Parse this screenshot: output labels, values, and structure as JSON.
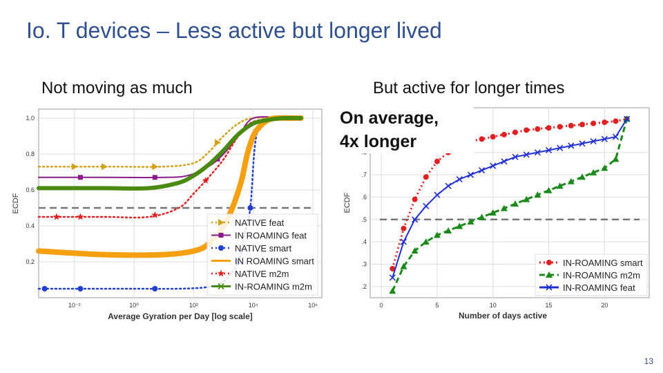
{
  "slide": {
    "title": "Io. T devices – Less active but longer lived",
    "subtitle_left": "Not moving as much",
    "subtitle_right": "But active for longer times",
    "callout_line1": "On average,",
    "callout_line2": "4x longer",
    "page_number": "13"
  },
  "chart_data": [
    {
      "type": "line",
      "xlabel": "Average Gyration per Day [log scale]",
      "ylabel": "ECDF",
      "xscale": "log",
      "xlim_exp": [
        -3.2,
        6.3
      ],
      "ylim": [
        0,
        1.05
      ],
      "x_ticks": [
        {
          "exp": -2,
          "label": "10⁻²"
        },
        {
          "exp": 0,
          "label": "10⁰"
        },
        {
          "exp": 2,
          "label": "10²"
        },
        {
          "exp": 4,
          "label": "10⁴"
        },
        {
          "exp": 6,
          "label": "10⁶"
        }
      ],
      "y_ticks": [
        0.2,
        0.4,
        0.6,
        0.8,
        1.0
      ],
      "y_tick_labels": [
        "0.2",
        "0.4",
        "0.6",
        "0.8",
        "1.0"
      ],
      "hline": 0.5,
      "grid": true,
      "legend_position": "bottom-right",
      "series": [
        {
          "name": "NATIVE feat",
          "color": "#d4a017",
          "dash": "2,4",
          "width": 2.5,
          "marker": "triangle-right",
          "x": [
            -3.2,
            -1,
            1,
            2,
            2.5,
            3,
            3.5,
            4,
            5
          ],
          "y": [
            0.73,
            0.73,
            0.73,
            0.75,
            0.81,
            0.9,
            0.97,
            1.0,
            1.0
          ],
          "markers_x": [
            -2,
            -1,
            0.7,
            2.8
          ]
        },
        {
          "name": "IN ROAMING feat",
          "color": "#8b1a8b",
          "dash": "",
          "width": 2,
          "marker": "square",
          "x": [
            -3.2,
            -1,
            1,
            1.8,
            2.5,
            3,
            3.5,
            4,
            5
          ],
          "y": [
            0.67,
            0.67,
            0.67,
            0.68,
            0.73,
            0.8,
            0.9,
            1.0,
            1.0
          ],
          "markers_x": [
            -1.8,
            0.7,
            2.8
          ]
        },
        {
          "name": "NATIVE smart",
          "color": "#1f3fcf",
          "dash": "2,4",
          "width": 2.5,
          "marker": "circle",
          "x": [
            -3.2,
            0,
            1.5,
            2.5,
            3,
            3.5,
            3.7,
            3.9,
            4.1,
            4.5,
            5
          ],
          "y": [
            0.05,
            0.05,
            0.05,
            0.06,
            0.09,
            0.2,
            0.35,
            0.5,
            0.9,
            1.0,
            1.0
          ],
          "markers_x": [
            -3,
            -1.8,
            0.7,
            3.5,
            3.9
          ]
        },
        {
          "name": "IN ROAMING smart",
          "color": "#f5a010",
          "dash": "",
          "width": 8,
          "marker": "none",
          "x": [
            -3.2,
            -1,
            1,
            2,
            2.5,
            3,
            3.3,
            3.6,
            3.8,
            4,
            4.2,
            4.5,
            4.8,
            5.2,
            5.6
          ],
          "y": [
            0.26,
            0.24,
            0.24,
            0.26,
            0.3,
            0.4,
            0.5,
            0.65,
            0.8,
            0.9,
            0.95,
            0.99,
            1.0,
            1.0,
            1.0
          ],
          "markers_x": []
        },
        {
          "name": "NATIVE m2m",
          "color": "#e02020",
          "dash": "2,4",
          "width": 2.5,
          "marker": "star",
          "x": [
            -3.2,
            -1,
            0.5,
            1.5,
            2,
            2.5,
            3,
            3.5,
            4,
            5
          ],
          "y": [
            0.45,
            0.45,
            0.45,
            0.5,
            0.58,
            0.67,
            0.77,
            0.9,
            0.98,
            1.0
          ],
          "markers_x": [
            -2.6,
            -1.8,
            0.7,
            2.4
          ]
        },
        {
          "name": "IN-ROAMING m2m",
          "color": "#4a8a10",
          "dash": "",
          "width": 6,
          "marker": "x",
          "x": [
            -3.2,
            -1,
            0.5,
            1.5,
            2,
            2.5,
            3,
            3.5,
            4,
            4.5,
            5,
            5.6
          ],
          "y": [
            0.61,
            0.61,
            0.61,
            0.64,
            0.68,
            0.74,
            0.82,
            0.91,
            0.97,
            0.99,
            1.0,
            1.0
          ],
          "markers_x": []
        }
      ]
    },
    {
      "type": "line",
      "xlabel": "Number of days active",
      "ylabel": "ECDF",
      "xlim": [
        -1,
        24
      ],
      "ylim": [
        0.15,
        1.0
      ],
      "x_ticks": [
        0,
        5,
        10,
        15,
        20
      ],
      "x_tick_labels": [
        "0",
        "5",
        "10",
        "15",
        "20"
      ],
      "y_ticks": [
        0.2,
        0.3,
        0.4,
        0.5,
        0.6,
        0.7,
        0.8
      ],
      "y_tick_labels": [
        ".2",
        ".3",
        ".4",
        ".5",
        ".6",
        ".7",
        ".8"
      ],
      "hline": 0.5,
      "grid": true,
      "legend_position": "bottom-right",
      "series": [
        {
          "name": "IN-ROAMING smart",
          "color": "#e02020",
          "dash": "2,4",
          "width": 3,
          "marker": "circle",
          "x": [
            1,
            2,
            3,
            4,
            5,
            6,
            7,
            8,
            9,
            10,
            11,
            12,
            13,
            14,
            15,
            16,
            17,
            18,
            19,
            20,
            21,
            22
          ],
          "y": [
            0.28,
            0.46,
            0.59,
            0.69,
            0.76,
            0.8,
            0.83,
            0.85,
            0.86,
            0.87,
            0.88,
            0.89,
            0.9,
            0.905,
            0.91,
            0.915,
            0.92,
            0.925,
            0.93,
            0.935,
            0.94,
            0.95
          ]
        },
        {
          "name": "IN-ROAMING m2m",
          "color": "#1a8a1a",
          "dash": "8,5",
          "width": 3,
          "marker": "triangle",
          "x": [
            1,
            2,
            3,
            4,
            5,
            6,
            7,
            8,
            9,
            10,
            11,
            12,
            13,
            14,
            15,
            16,
            17,
            18,
            19,
            20,
            21,
            22
          ],
          "y": [
            0.18,
            0.29,
            0.36,
            0.4,
            0.43,
            0.45,
            0.47,
            0.49,
            0.51,
            0.53,
            0.55,
            0.57,
            0.59,
            0.61,
            0.63,
            0.65,
            0.67,
            0.69,
            0.71,
            0.73,
            0.77,
            0.95
          ]
        },
        {
          "name": "IN-ROAMING feat",
          "color": "#1f2fcf",
          "dash": "",
          "width": 2,
          "marker": "x",
          "x": [
            1,
            2,
            3,
            4,
            5,
            6,
            7,
            8,
            9,
            10,
            11,
            12,
            13,
            14,
            15,
            16,
            17,
            18,
            19,
            20,
            21,
            22
          ],
          "y": [
            0.24,
            0.4,
            0.5,
            0.56,
            0.61,
            0.65,
            0.68,
            0.7,
            0.72,
            0.74,
            0.76,
            0.78,
            0.79,
            0.8,
            0.81,
            0.82,
            0.83,
            0.84,
            0.85,
            0.86,
            0.87,
            0.95
          ]
        }
      ]
    }
  ]
}
